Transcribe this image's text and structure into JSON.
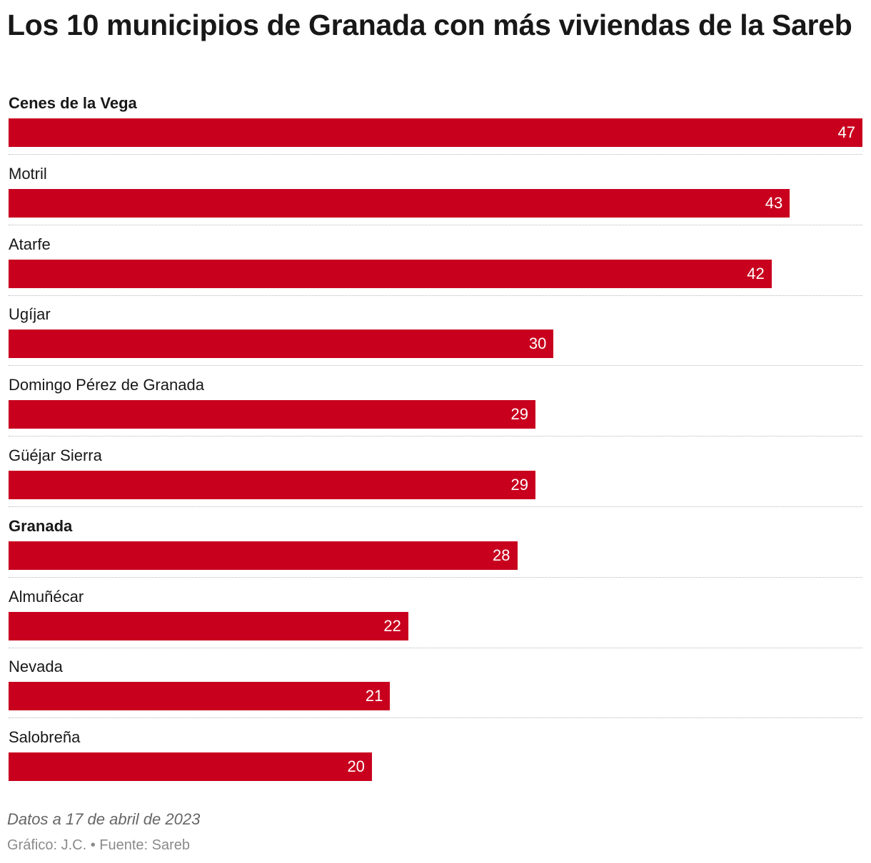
{
  "chart_data": {
    "type": "bar",
    "orientation": "horizontal",
    "title": "Los 10 municipios de Granada con más viviendas de la Sareb",
    "categories": [
      "Cenes de la Vega",
      "Motril",
      "Atarfe",
      "Ugíjar",
      "Domingo Pérez de Granada",
      "Güéjar Sierra",
      "Granada",
      "Almuñécar",
      "Nevada",
      "Salobreña"
    ],
    "values": [
      47,
      43,
      42,
      30,
      29,
      29,
      28,
      22,
      21,
      20
    ],
    "highlighted": [
      "Cenes de la Vega",
      "Granada"
    ],
    "xlim": [
      0,
      47
    ],
    "bar_color": "#c8001e",
    "xlabel": "",
    "ylabel": "",
    "grid": false
  },
  "footer": {
    "note": "Datos a 17 de abril de 2023",
    "credit": "Gráfico: J.C. • Fuente: Sareb"
  }
}
